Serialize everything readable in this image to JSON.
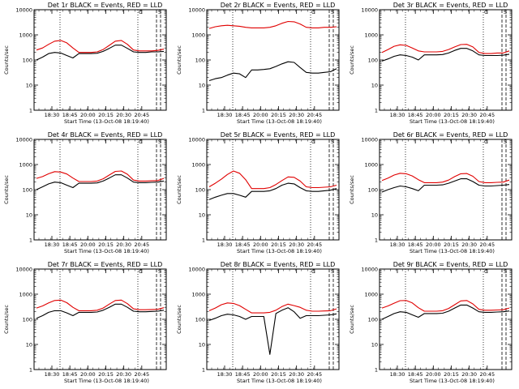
{
  "colors": {
    "events": "#000000",
    "lld": "#e00000",
    "axes": "#000000",
    "background": "#ffffff"
  },
  "chart_data": [
    {
      "type": "line",
      "title": "Det 1r BLACK = Events, RED = LLD",
      "xlabel": "Start Time (13-Oct-08 18:19:40)",
      "ylabel": "Counts/sec",
      "yscale": "log",
      "ylim": [
        1,
        10000
      ],
      "y_ticks": [
        {
          "value": 1,
          "label": "1"
        },
        {
          "value": 10,
          "label": "10"
        },
        {
          "value": 100,
          "label": "100"
        },
        {
          "value": 1000,
          "label": "1000"
        },
        {
          "value": 10000,
          "label": "10000"
        }
      ],
      "x_ticks": [
        "18:30",
        "18:45",
        "20:00",
        "20:15",
        "20:30",
        "20:45"
      ],
      "corner_marks": [
        "C",
        "S"
      ],
      "series": [
        {
          "name": "LLD",
          "color": "#e00000",
          "y": [
            250,
            300,
            420,
            560,
            600,
            480,
            300,
            200,
            200,
            200,
            210,
            260,
            380,
            560,
            600,
            420,
            250,
            230,
            230,
            230,
            240,
            270
          ]
        },
        {
          "name": "Events",
          "color": "#000000",
          "y": [
            100,
            130,
            180,
            200,
            190,
            150,
            120,
            180,
            180,
            180,
            185,
            220,
            290,
            390,
            390,
            290,
            210,
            200,
            200,
            210,
            210,
            220
          ]
        }
      ]
    },
    {
      "type": "line",
      "title": "Det 2r BLACK = Events, RED = LLD",
      "xlabel": "Start Time (13-Oct-08 18:19:40)",
      "ylabel": "Counts/sec",
      "yscale": "log",
      "ylim": [
        1,
        10000
      ],
      "y_ticks": [
        {
          "value": 1,
          "label": "1"
        },
        {
          "value": 10,
          "label": "10"
        },
        {
          "value": 100,
          "label": "100"
        },
        {
          "value": 1000,
          "label": "1000"
        },
        {
          "value": 10000,
          "label": "10000"
        }
      ],
      "x_ticks": [
        "18:30",
        "18:45",
        "20:00",
        "20:15",
        "20:30",
        "20:45"
      ],
      "corner_marks": [
        "C",
        "S"
      ],
      "series": [
        {
          "name": "LLD",
          "color": "#e00000",
          "y": [
            1800,
            2100,
            2300,
            2400,
            2300,
            2200,
            2000,
            1900,
            1900,
            1900,
            2000,
            2300,
            2900,
            3400,
            3300,
            2700,
            2000,
            1900,
            1900,
            2000,
            2000,
            2100
          ]
        },
        {
          "name": "Events",
          "color": "#000000",
          "y": [
            15,
            18,
            20,
            25,
            30,
            28,
            20,
            40,
            40,
            42,
            45,
            55,
            70,
            85,
            80,
            50,
            32,
            30,
            30,
            32,
            34,
            45
          ]
        }
      ]
    },
    {
      "type": "line",
      "title": "Det 3r BLACK = Events, RED = LLD",
      "xlabel": "Start Time (13-Oct-08 18:19:40)",
      "ylabel": "Counts/sec",
      "yscale": "log",
      "ylim": [
        1,
        10000
      ],
      "y_ticks": [
        {
          "value": 1,
          "label": "1"
        },
        {
          "value": 10,
          "label": "10"
        },
        {
          "value": 100,
          "label": "100"
        },
        {
          "value": 1000,
          "label": "1000"
        },
        {
          "value": 10000,
          "label": "10000"
        }
      ],
      "x_ticks": [
        "18:30",
        "18:45",
        "20:00",
        "20:15",
        "20:30",
        "20:45"
      ],
      "corner_marks": [
        "C",
        "S"
      ],
      "series": [
        {
          "name": "LLD",
          "color": "#e00000",
          "y": [
            200,
            260,
            350,
            400,
            380,
            300,
            230,
            210,
            210,
            210,
            220,
            260,
            330,
            410,
            420,
            330,
            200,
            180,
            180,
            190,
            190,
            230
          ]
        },
        {
          "name": "Events",
          "color": "#000000",
          "y": [
            90,
            110,
            140,
            160,
            150,
            130,
            100,
            160,
            160,
            160,
            165,
            190,
            240,
            290,
            290,
            230,
            160,
            150,
            150,
            150,
            155,
            170
          ]
        }
      ]
    },
    {
      "type": "line",
      "title": "Det 4r BLACK = Events, RED = LLD",
      "xlabel": "Start Time (13-Oct-08 18:19:40)",
      "ylabel": "Counts/sec",
      "yscale": "log",
      "ylim": [
        1,
        10000
      ],
      "y_ticks": [
        {
          "value": 1,
          "label": "1"
        },
        {
          "value": 10,
          "label": "10"
        },
        {
          "value": 100,
          "label": "100"
        },
        {
          "value": 1000,
          "label": "1000"
        },
        {
          "value": 10000,
          "label": "10000"
        }
      ],
      "x_ticks": [
        "18:30",
        "18:45",
        "20:00",
        "20:15",
        "20:30",
        "20:45"
      ],
      "corner_marks": [
        "C",
        "S"
      ],
      "series": [
        {
          "name": "LLD",
          "color": "#e00000",
          "y": [
            280,
            330,
            430,
            520,
            500,
            420,
            290,
            210,
            210,
            210,
            220,
            270,
            380,
            530,
            550,
            410,
            240,
            220,
            220,
            225,
            230,
            280
          ]
        },
        {
          "name": "Events",
          "color": "#000000",
          "y": [
            100,
            130,
            170,
            200,
            190,
            150,
            120,
            180,
            180,
            180,
            185,
            220,
            290,
            390,
            390,
            290,
            200,
            190,
            190,
            195,
            200,
            220
          ]
        }
      ]
    },
    {
      "type": "line",
      "title": "Det 5r BLACK = Events, RED = LLD",
      "xlabel": "Start Time (13-Oct-08 18:19:40)",
      "ylabel": "Counts/sec",
      "yscale": "log",
      "ylim": [
        1,
        10000
      ],
      "y_ticks": [
        {
          "value": 1,
          "label": "1"
        },
        {
          "value": 10,
          "label": "10"
        },
        {
          "value": 100,
          "label": "100"
        },
        {
          "value": 1000,
          "label": "1000"
        },
        {
          "value": 10000,
          "label": "10000"
        }
      ],
      "x_ticks": [
        "18:30",
        "18:45",
        "20:00",
        "20:15",
        "20:30",
        "20:45"
      ],
      "corner_marks": [
        "C",
        "S"
      ],
      "series": [
        {
          "name": "LLD",
          "color": "#e00000",
          "y": [
            130,
            180,
            260,
            400,
            550,
            450,
            250,
            110,
            110,
            110,
            120,
            160,
            230,
            320,
            310,
            220,
            130,
            120,
            120,
            125,
            130,
            150
          ]
        },
        {
          "name": "Events",
          "color": "#000000",
          "y": [
            40,
            50,
            60,
            70,
            70,
            60,
            50,
            85,
            85,
            85,
            90,
            110,
            150,
            180,
            170,
            120,
            90,
            85,
            85,
            90,
            95,
            110
          ]
        }
      ]
    },
    {
      "type": "line",
      "title": "Det 6r BLACK = Events, RED = LLD",
      "xlabel": "Start Time (13-Oct-08 18:19:40)",
      "ylabel": "Counts/sec",
      "yscale": "log",
      "ylim": [
        1,
        10000
      ],
      "y_ticks": [
        {
          "value": 1,
          "label": "1"
        },
        {
          "value": 10,
          "label": "10"
        },
        {
          "value": 100,
          "label": "100"
        },
        {
          "value": 1000,
          "label": "1000"
        },
        {
          "value": 10000,
          "label": "10000"
        }
      ],
      "x_ticks": [
        "18:30",
        "18:45",
        "20:00",
        "20:15",
        "20:30",
        "20:45"
      ],
      "corner_marks": [
        "C",
        "S"
      ],
      "series": [
        {
          "name": "LLD",
          "color": "#e00000",
          "y": [
            230,
            290,
            380,
            450,
            430,
            350,
            250,
            190,
            190,
            190,
            200,
            240,
            330,
            430,
            440,
            340,
            210,
            190,
            190,
            195,
            200,
            240
          ]
        },
        {
          "name": "Events",
          "color": "#000000",
          "y": [
            80,
            100,
            120,
            140,
            130,
            110,
            90,
            150,
            150,
            150,
            155,
            180,
            220,
            270,
            270,
            210,
            150,
            140,
            140,
            145,
            150,
            160
          ]
        }
      ]
    },
    {
      "type": "line",
      "title": "Det 7r BLACK = Events, RED = LLD",
      "xlabel": "Start Time (13-Oct-08 18:19:40)",
      "ylabel": "Counts/sec",
      "yscale": "log",
      "ylim": [
        1,
        10000
      ],
      "y_ticks": [
        {
          "value": 1,
          "label": "1"
        },
        {
          "value": 10,
          "label": "10"
        },
        {
          "value": 100,
          "label": "100"
        },
        {
          "value": 1000,
          "label": "1000"
        },
        {
          "value": 10000,
          "label": "10000"
        }
      ],
      "x_ticks": [
        "18:30",
        "18:45",
        "20:00",
        "20:15",
        "20:30",
        "20:45"
      ],
      "corner_marks": [
        "C",
        "S"
      ],
      "series": [
        {
          "name": "LLD",
          "color": "#e00000",
          "y": [
            280,
            340,
            450,
            560,
            580,
            460,
            300,
            220,
            220,
            220,
            230,
            280,
            400,
            560,
            580,
            420,
            260,
            240,
            240,
            245,
            250,
            290
          ]
        },
        {
          "name": "Events",
          "color": "#000000",
          "y": [
            110,
            140,
            190,
            220,
            220,
            180,
            140,
            190,
            190,
            190,
            195,
            230,
            300,
            400,
            400,
            300,
            210,
            200,
            200,
            205,
            210,
            230
          ]
        }
      ]
    },
    {
      "type": "line",
      "title": "Det 8r BLACK = Events, RED = LLD",
      "xlabel": "Start Time (13-Oct-08 18:19:40)",
      "ylabel": "Counts/sec",
      "yscale": "log",
      "ylim": [
        1,
        10000
      ],
      "y_ticks": [
        {
          "value": 1,
          "label": "1"
        },
        {
          "value": 10,
          "label": "10"
        },
        {
          "value": 100,
          "label": "100"
        },
        {
          "value": 1000,
          "label": "1000"
        },
        {
          "value": 10000,
          "label": "10000"
        }
      ],
      "x_ticks": [
        "18:30",
        "18:45",
        "20:00",
        "20:15",
        "20:30",
        "20:45"
      ],
      "corner_marks": [
        "C",
        "S"
      ],
      "series": [
        {
          "name": "LLD",
          "color": "#e00000",
          "y": [
            220,
            280,
            380,
            450,
            430,
            350,
            250,
            180,
            180,
            180,
            190,
            230,
            320,
            400,
            350,
            300,
            230,
            210,
            210,
            215,
            220,
            260
          ]
        },
        {
          "name": "Events",
          "color": "#000000",
          "y": [
            90,
            110,
            140,
            160,
            150,
            130,
            100,
            130,
            130,
            130,
            4,
            170,
            230,
            290,
            200,
            110,
            140,
            140,
            140,
            145,
            150,
            165
          ]
        }
      ]
    },
    {
      "type": "line",
      "title": "Det 9r BLACK = Events, RED = LLD",
      "xlabel": "Start Time (13-Oct-08 18:19:40)",
      "ylabel": "Counts/sec",
      "yscale": "log",
      "ylim": [
        1,
        10000
      ],
      "y_ticks": [
        {
          "value": 1,
          "label": "1"
        },
        {
          "value": 10,
          "label": "10"
        },
        {
          "value": 100,
          "label": "100"
        },
        {
          "value": 1000,
          "label": "1000"
        },
        {
          "value": 10000,
          "label": "10000"
        }
      ],
      "x_ticks": [
        "18:30",
        "18:45",
        "20:00",
        "20:15",
        "20:30",
        "20:45"
      ],
      "corner_marks": [
        "C",
        "S"
      ],
      "series": [
        {
          "name": "LLD",
          "color": "#e00000",
          "y": [
            280,
            340,
            440,
            550,
            560,
            450,
            290,
            210,
            210,
            210,
            220,
            270,
            380,
            540,
            560,
            410,
            250,
            230,
            230,
            235,
            240,
            280
          ]
        },
        {
          "name": "Events",
          "color": "#000000",
          "y": [
            100,
            130,
            170,
            200,
            190,
            150,
            120,
            170,
            170,
            170,
            175,
            210,
            280,
            370,
            370,
            280,
            200,
            190,
            190,
            195,
            200,
            215
          ]
        }
      ]
    }
  ]
}
